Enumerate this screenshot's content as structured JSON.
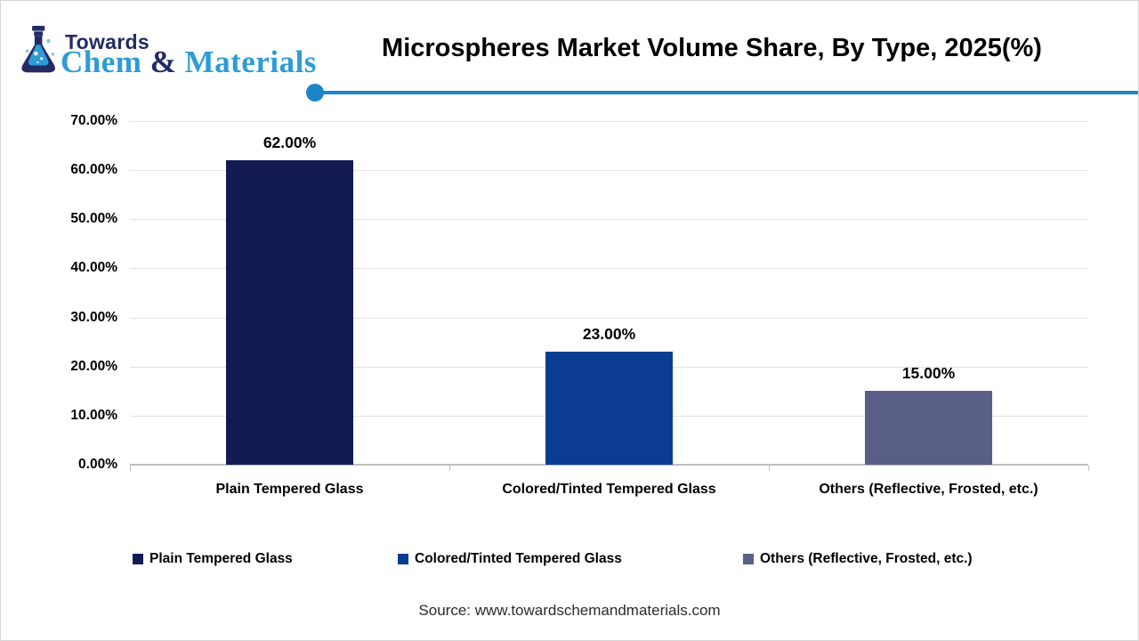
{
  "logo": {
    "towards": "Towards",
    "chem": "Chem",
    "ampersand": " & ",
    "materials": "Materials"
  },
  "brand_colors": {
    "navy": "#242b63",
    "blue": "#2e9cd6"
  },
  "accent_color": "#1a86c8",
  "header": {
    "title": "Microspheres Market Volume Share, By Type, 2025(%)"
  },
  "chart_data": {
    "type": "bar",
    "title": "Microspheres Market Volume Share, By Type, 2025(%)",
    "categories": [
      "Plain Tempered Glass",
      "Colored/Tinted Tempered Glass",
      "Others (Reflective, Frosted, etc.)"
    ],
    "values": [
      62,
      23,
      15
    ],
    "value_labels": [
      "62.00%",
      "23.00%",
      "15.00%"
    ],
    "bar_colors": [
      "#141b52",
      "#0a3d91",
      "#5a5f87"
    ],
    "xlabel": "",
    "ylabel": "",
    "ylim": [
      0,
      70
    ],
    "ytick_labels": [
      "0.00%",
      "10.00%",
      "20.00%",
      "30.00%",
      "40.00%",
      "50.00%",
      "60.00%",
      "70.00%"
    ],
    "grid": true,
    "legend_position": "bottom",
    "legend": [
      {
        "label": "Plain Tempered Glass",
        "color": "#141b52"
      },
      {
        "label": "Colored/Tinted Tempered Glass",
        "color": "#0a3d91"
      },
      {
        "label": "Others (Reflective, Frosted, etc.)",
        "color": "#5a5f87"
      }
    ]
  },
  "footer": {
    "source": "Source: www.towardschemandmaterials.com"
  }
}
